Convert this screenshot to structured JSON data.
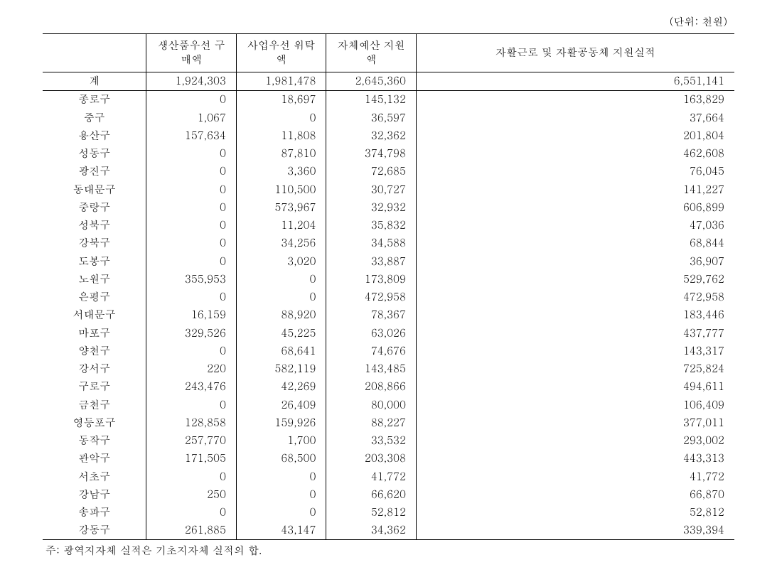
{
  "unit_label": "(단위: 천원)",
  "columns": {
    "c0": "",
    "c1": "생산품우선\n구매액",
    "c2": "사업우선\n위탁액",
    "c3": "자체예산\n지원액",
    "c4": "자활근로 및 자활공동체 지원실적"
  },
  "rows": [
    {
      "label": "계",
      "v": [
        "1,924,303",
        "1,981,478",
        "2,645,360",
        "6,551,141"
      ]
    },
    {
      "label": "종로구",
      "v": [
        "0",
        "18,697",
        "145,132",
        "163,829"
      ]
    },
    {
      "label": "중구",
      "v": [
        "1,067",
        "0",
        "36,597",
        "37,664"
      ]
    },
    {
      "label": "용산구",
      "v": [
        "157,634",
        "11,808",
        "32,362",
        "201,804"
      ]
    },
    {
      "label": "성동구",
      "v": [
        "0",
        "87,810",
        "374,798",
        "462,608"
      ]
    },
    {
      "label": "광진구",
      "v": [
        "0",
        "3,360",
        "72,685",
        "76,045"
      ]
    },
    {
      "label": "동대문구",
      "v": [
        "0",
        "110,500",
        "30,727",
        "141,227"
      ]
    },
    {
      "label": "중랑구",
      "v": [
        "0",
        "573,967",
        "32,932",
        "606,899"
      ]
    },
    {
      "label": "성북구",
      "v": [
        "0",
        "11,204",
        "35,832",
        "47,036"
      ]
    },
    {
      "label": "강북구",
      "v": [
        "0",
        "34,256",
        "34,588",
        "68,844"
      ]
    },
    {
      "label": "도봉구",
      "v": [
        "0",
        "3,020",
        "33,887",
        "36,907"
      ]
    },
    {
      "label": "노원구",
      "v": [
        "355,953",
        "0",
        "173,809",
        "529,762"
      ]
    },
    {
      "label": "은평구",
      "v": [
        "0",
        "0",
        "472,958",
        "472,958"
      ]
    },
    {
      "label": "서대문구",
      "v": [
        "16,159",
        "88,920",
        "78,367",
        "183,446"
      ]
    },
    {
      "label": "마포구",
      "v": [
        "329,526",
        "45,225",
        "63,026",
        "437,777"
      ]
    },
    {
      "label": "양천구",
      "v": [
        "0",
        "68,641",
        "74,676",
        "143,317"
      ]
    },
    {
      "label": "강서구",
      "v": [
        "220",
        "582,119",
        "143,485",
        "725,824"
      ]
    },
    {
      "label": "구로구",
      "v": [
        "243,476",
        "42,269",
        "208,866",
        "494,611"
      ]
    },
    {
      "label": "금천구",
      "v": [
        "0",
        "26,409",
        "80,000",
        "106,409"
      ]
    },
    {
      "label": "영등포구",
      "v": [
        "128,858",
        "159,926",
        "88,227",
        "377,011"
      ]
    },
    {
      "label": "동작구",
      "v": [
        "257,770",
        "1,700",
        "33,532",
        "293,002"
      ]
    },
    {
      "label": "관악구",
      "v": [
        "171,505",
        "68,500",
        "203,308",
        "443,313"
      ]
    },
    {
      "label": "서초구",
      "v": [
        "0",
        "0",
        "41,772",
        "41,772"
      ]
    },
    {
      "label": "강남구",
      "v": [
        "250",
        "0",
        "66,620",
        "66,870"
      ]
    },
    {
      "label": "송파구",
      "v": [
        "0",
        "0",
        "52,812",
        "52,812"
      ]
    },
    {
      "label": "강동구",
      "v": [
        "261,885",
        "43,147",
        "34,362",
        "339,394"
      ]
    }
  ],
  "footnote": "주: 광역지자체 실적은 기초지자체 실적의 합.",
  "style": {
    "font_family": "Batang, BatangChe, Malgun Gothic, serif",
    "font_size_pt": 15,
    "border_color": "#000000",
    "background_color": "#ffffff",
    "text_color": "#000000",
    "header_border_width": 1.5,
    "body_vline_width": 1
  }
}
